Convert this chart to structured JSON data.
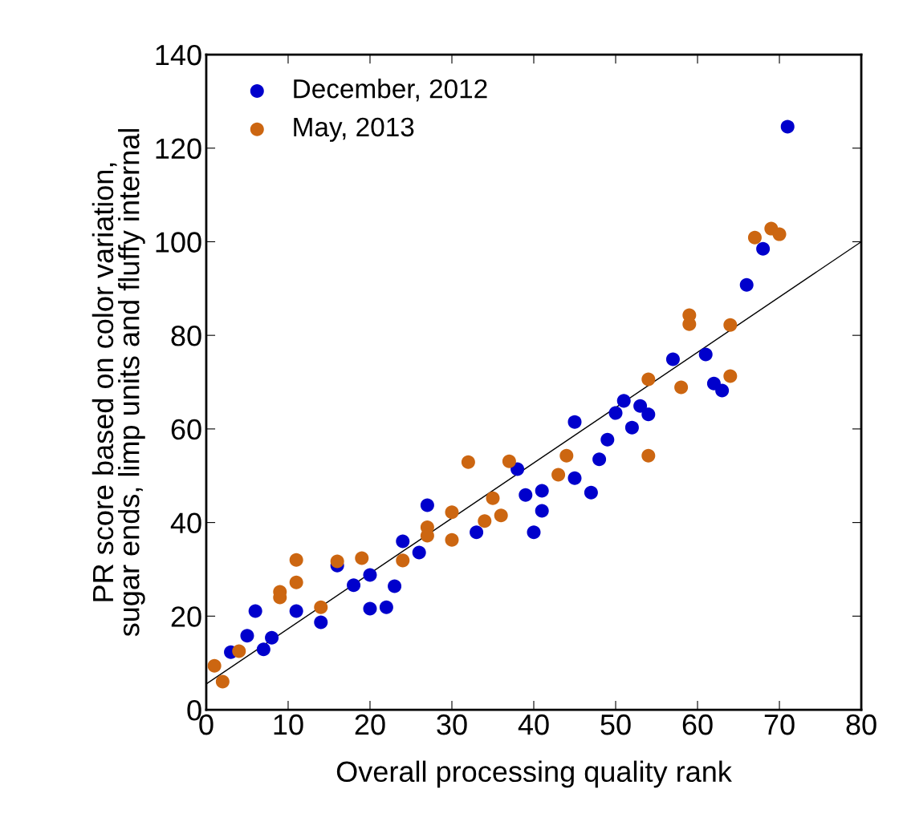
{
  "chart_data": {
    "type": "scatter",
    "xlabel": "Overall processing quality rank",
    "ylabel": "PR score based on color variation,\nsugar ends, limp units and fluffy internal",
    "xlim": [
      0,
      80
    ],
    "ylim": [
      0,
      140
    ],
    "xticks": [
      0,
      10,
      20,
      30,
      40,
      50,
      60,
      70,
      80
    ],
    "yticks": [
      0,
      20,
      40,
      60,
      80,
      100,
      120,
      140
    ],
    "grid": false,
    "legend": "top left",
    "marker": "circle",
    "series": [
      {
        "name": "December, 2012",
        "color": "#0000cc",
        "x": [
          3,
          5,
          6,
          7,
          8,
          11,
          14,
          16,
          18,
          20,
          20,
          22,
          23,
          24,
          26,
          27,
          33,
          38,
          39,
          40,
          41,
          41,
          45,
          45,
          47,
          48,
          49,
          50,
          51,
          52,
          53,
          54,
          57,
          61,
          62,
          63,
          66,
          68,
          71
        ],
        "values": [
          12.3,
          15.8,
          21.1,
          12.9,
          15.4,
          21.1,
          18.7,
          30.8,
          26.6,
          28.8,
          21.6,
          21.9,
          26.4,
          36.0,
          33.6,
          43.7,
          37.9,
          51.4,
          45.9,
          37.9,
          46.8,
          42.5,
          61.5,
          49.5,
          46.4,
          53.5,
          57.7,
          63.4,
          66.0,
          60.3,
          64.9,
          63.1,
          74.9,
          75.9,
          69.7,
          68.2,
          90.8,
          98.5,
          124.6
        ]
      },
      {
        "name": "May, 2013",
        "color": "#cc6611",
        "x": [
          1,
          2,
          4,
          9,
          9,
          11,
          11,
          14,
          16,
          19,
          24,
          27,
          27,
          30,
          30,
          32,
          34,
          35,
          36,
          37,
          43,
          44,
          54,
          54,
          58,
          59,
          59,
          64,
          64,
          67,
          69,
          70
        ],
        "values": [
          9.4,
          6.0,
          12.5,
          25.2,
          24.0,
          32.0,
          27.2,
          21.9,
          31.7,
          32.4,
          31.9,
          39.0,
          37.2,
          42.2,
          36.3,
          52.9,
          40.3,
          45.2,
          41.5,
          53.1,
          50.2,
          54.3,
          70.6,
          54.3,
          68.9,
          84.3,
          82.4,
          82.2,
          71.3,
          100.9,
          102.8,
          101.6
        ]
      },
      {
        "type": "line",
        "color": "#000000",
        "x": [
          0,
          80
        ],
        "values": [
          5.5,
          100
        ],
        "marker": "none"
      }
    ]
  }
}
